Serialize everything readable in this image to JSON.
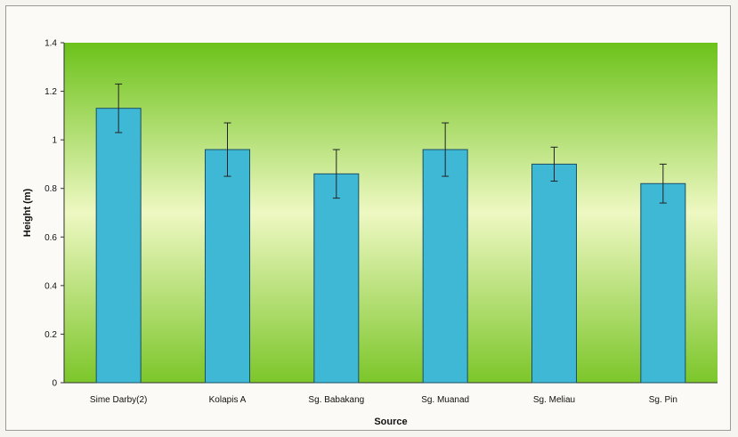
{
  "chart_data": {
    "type": "bar",
    "categories": [
      "Sime Darby(2)",
      "Kolapis A",
      "Sg. Babakang",
      "Sg. Muanad",
      "Sg. Meliau",
      "Sg. Pin"
    ],
    "series": [
      {
        "values": [
          1.13,
          0.96,
          0.86,
          0.96,
          0.9,
          0.82
        ],
        "error": [
          0.1,
          0.11,
          0.1,
          0.11,
          0.07,
          0.08
        ]
      }
    ],
    "xlabel": "Source",
    "ylabel": "Height (m)",
    "ylim": [
      0,
      1.4
    ],
    "yticks": [
      "0",
      "0.2",
      "0.4",
      "0.6",
      "0.8",
      "1",
      "1.2",
      "1.4"
    ],
    "grid": false,
    "legend": "none",
    "colors": {
      "bar_fill": "#3fb8d6",
      "bar_stroke": "#1d4f63",
      "bg_top": "#6cc21a",
      "bg_mid": "#eef8c2",
      "bg_bottom": "#7cc62a"
    }
  }
}
